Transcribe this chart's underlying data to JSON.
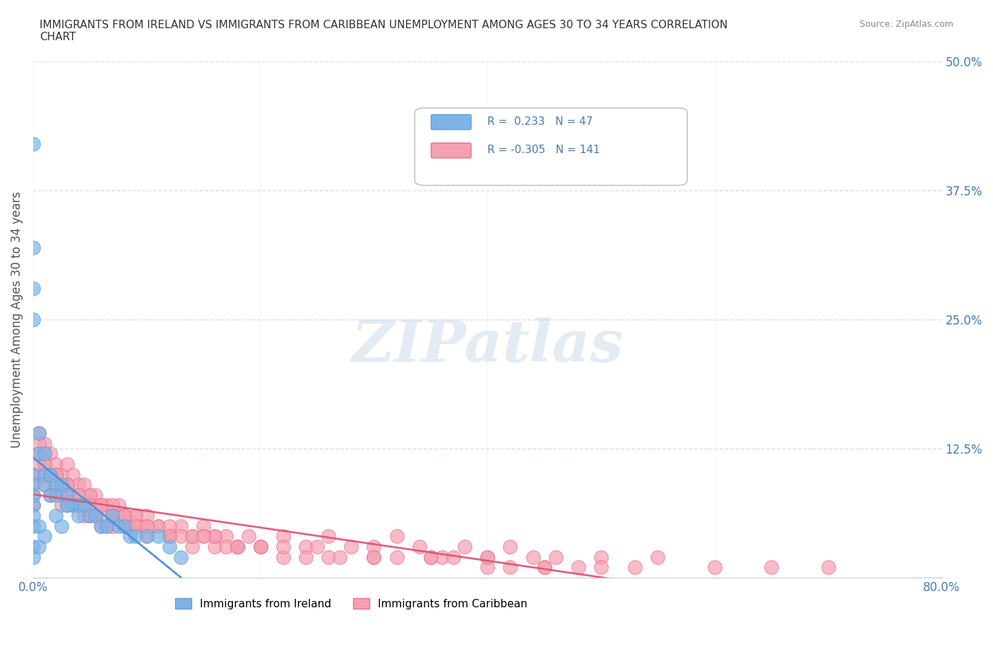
{
  "title": "IMMIGRANTS FROM IRELAND VS IMMIGRANTS FROM CARIBBEAN UNEMPLOYMENT AMONG AGES 30 TO 34 YEARS CORRELATION\nCHART",
  "source": "Source: ZipAtlas.com",
  "xlabel": "",
  "ylabel": "Unemployment Among Ages 30 to 34 years",
  "xlim": [
    0.0,
    0.8
  ],
  "ylim": [
    0.0,
    0.5
  ],
  "xticks": [
    0.0,
    0.2,
    0.4,
    0.6,
    0.8
  ],
  "xticklabels": [
    "0.0%",
    "",
    "",
    "",
    "80.0%"
  ],
  "yticks": [
    0.0,
    0.125,
    0.25,
    0.375,
    0.5
  ],
  "yticklabels": [
    "",
    "12.5%",
    "25.0%",
    "37.5%",
    "50.0%"
  ],
  "ireland_color": "#7eb3e8",
  "ireland_edge": "#5a9fd4",
  "caribbean_color": "#f5a0b0",
  "caribbean_edge": "#e87090",
  "ireland_R": 0.233,
  "ireland_N": 47,
  "caribbean_R": -0.305,
  "caribbean_N": 141,
  "ireland_line_color": "#4a90d9",
  "caribbean_line_color": "#e05070",
  "watermark": "ZIPatlas",
  "watermark_color": "#c8d8e8",
  "legend_label_ireland": "Immigrants from Ireland",
  "legend_label_caribbean": "Immigrants from Caribbean",
  "background_color": "#ffffff",
  "grid_color": "#d0d8e8",
  "tick_color": "#4a7ab0",
  "ireland_scatter_x": [
    0.0,
    0.0,
    0.0,
    0.0,
    0.0,
    0.0,
    0.0,
    0.0,
    0.0,
    0.0,
    0.005,
    0.005,
    0.01,
    0.01,
    0.01,
    0.015,
    0.015,
    0.02,
    0.02,
    0.025,
    0.03,
    0.03,
    0.035,
    0.04,
    0.04,
    0.045,
    0.05,
    0.055,
    0.06,
    0.065,
    0.07,
    0.075,
    0.08,
    0.085,
    0.09,
    0.1,
    0.11,
    0.12,
    0.13,
    0.0,
    0.0,
    0.005,
    0.01,
    0.02,
    0.025,
    0.03,
    0.005
  ],
  "ireland_scatter_y": [
    0.42,
    0.32,
    0.28,
    0.25,
    0.1,
    0.09,
    0.08,
    0.07,
    0.06,
    0.05,
    0.14,
    0.12,
    0.12,
    0.1,
    0.09,
    0.1,
    0.08,
    0.09,
    0.08,
    0.09,
    0.08,
    0.07,
    0.07,
    0.07,
    0.06,
    0.07,
    0.06,
    0.06,
    0.05,
    0.05,
    0.06,
    0.05,
    0.05,
    0.04,
    0.04,
    0.04,
    0.04,
    0.03,
    0.02,
    0.03,
    0.02,
    0.05,
    0.04,
    0.06,
    0.05,
    0.07,
    0.03
  ],
  "caribbean_scatter_x": [
    0.0,
    0.0,
    0.0,
    0.0,
    0.005,
    0.005,
    0.01,
    0.01,
    0.01,
    0.015,
    0.015,
    0.02,
    0.02,
    0.025,
    0.025,
    0.03,
    0.03,
    0.035,
    0.035,
    0.04,
    0.04,
    0.045,
    0.045,
    0.05,
    0.05,
    0.055,
    0.055,
    0.06,
    0.06,
    0.065,
    0.07,
    0.075,
    0.08,
    0.085,
    0.09,
    0.095,
    0.1,
    0.11,
    0.12,
    0.13,
    0.14,
    0.15,
    0.16,
    0.17,
    0.18,
    0.19,
    0.2,
    0.22,
    0.24,
    0.26,
    0.28,
    0.3,
    0.32,
    0.34,
    0.36,
    0.38,
    0.4,
    0.42,
    0.44,
    0.46,
    0.5,
    0.55,
    0.6,
    0.65,
    0.7,
    0.005,
    0.01,
    0.015,
    0.02,
    0.025,
    0.03,
    0.035,
    0.04,
    0.045,
    0.05,
    0.055,
    0.06,
    0.065,
    0.07,
    0.075,
    0.08,
    0.09,
    0.1,
    0.11,
    0.12,
    0.13,
    0.14,
    0.15,
    0.16,
    0.17,
    0.18,
    0.2,
    0.22,
    0.24,
    0.26,
    0.3,
    0.35,
    0.4,
    0.45,
    0.5,
    0.01,
    0.02,
    0.03,
    0.04,
    0.05,
    0.06,
    0.07,
    0.08,
    0.09,
    0.1,
    0.12,
    0.14,
    0.16,
    0.18,
    0.2,
    0.25,
    0.3,
    0.35,
    0.4,
    0.45,
    0.005,
    0.01,
    0.02,
    0.03,
    0.04,
    0.05,
    0.06,
    0.07,
    0.08,
    0.09,
    0.1,
    0.12,
    0.15,
    0.18,
    0.22,
    0.27,
    0.32,
    0.37,
    0.42,
    0.48,
    0.53
  ],
  "caribbean_scatter_y": [
    0.1,
    0.09,
    0.08,
    0.07,
    0.14,
    0.12,
    0.13,
    0.11,
    0.1,
    0.12,
    0.1,
    0.11,
    0.09,
    0.1,
    0.08,
    0.11,
    0.09,
    0.1,
    0.08,
    0.09,
    0.07,
    0.09,
    0.07,
    0.08,
    0.06,
    0.08,
    0.06,
    0.07,
    0.05,
    0.07,
    0.06,
    0.07,
    0.06,
    0.05,
    0.06,
    0.05,
    0.06,
    0.05,
    0.04,
    0.05,
    0.04,
    0.05,
    0.04,
    0.04,
    0.03,
    0.04,
    0.03,
    0.04,
    0.03,
    0.04,
    0.03,
    0.03,
    0.04,
    0.03,
    0.02,
    0.03,
    0.02,
    0.03,
    0.02,
    0.02,
    0.02,
    0.02,
    0.01,
    0.01,
    0.01,
    0.11,
    0.09,
    0.08,
    0.1,
    0.07,
    0.08,
    0.07,
    0.07,
    0.06,
    0.07,
    0.06,
    0.06,
    0.05,
    0.05,
    0.06,
    0.05,
    0.05,
    0.04,
    0.05,
    0.04,
    0.04,
    0.03,
    0.04,
    0.03,
    0.03,
    0.03,
    0.03,
    0.02,
    0.02,
    0.02,
    0.02,
    0.02,
    0.01,
    0.01,
    0.01,
    0.12,
    0.1,
    0.09,
    0.08,
    0.08,
    0.07,
    0.07,
    0.06,
    0.06,
    0.05,
    0.05,
    0.04,
    0.04,
    0.03,
    0.03,
    0.03,
    0.02,
    0.02,
    0.02,
    0.01,
    0.13,
    0.11,
    0.1,
    0.09,
    0.08,
    0.07,
    0.07,
    0.06,
    0.06,
    0.05,
    0.05,
    0.04,
    0.04,
    0.03,
    0.03,
    0.02,
    0.02,
    0.02,
    0.01,
    0.01,
    0.01
  ]
}
